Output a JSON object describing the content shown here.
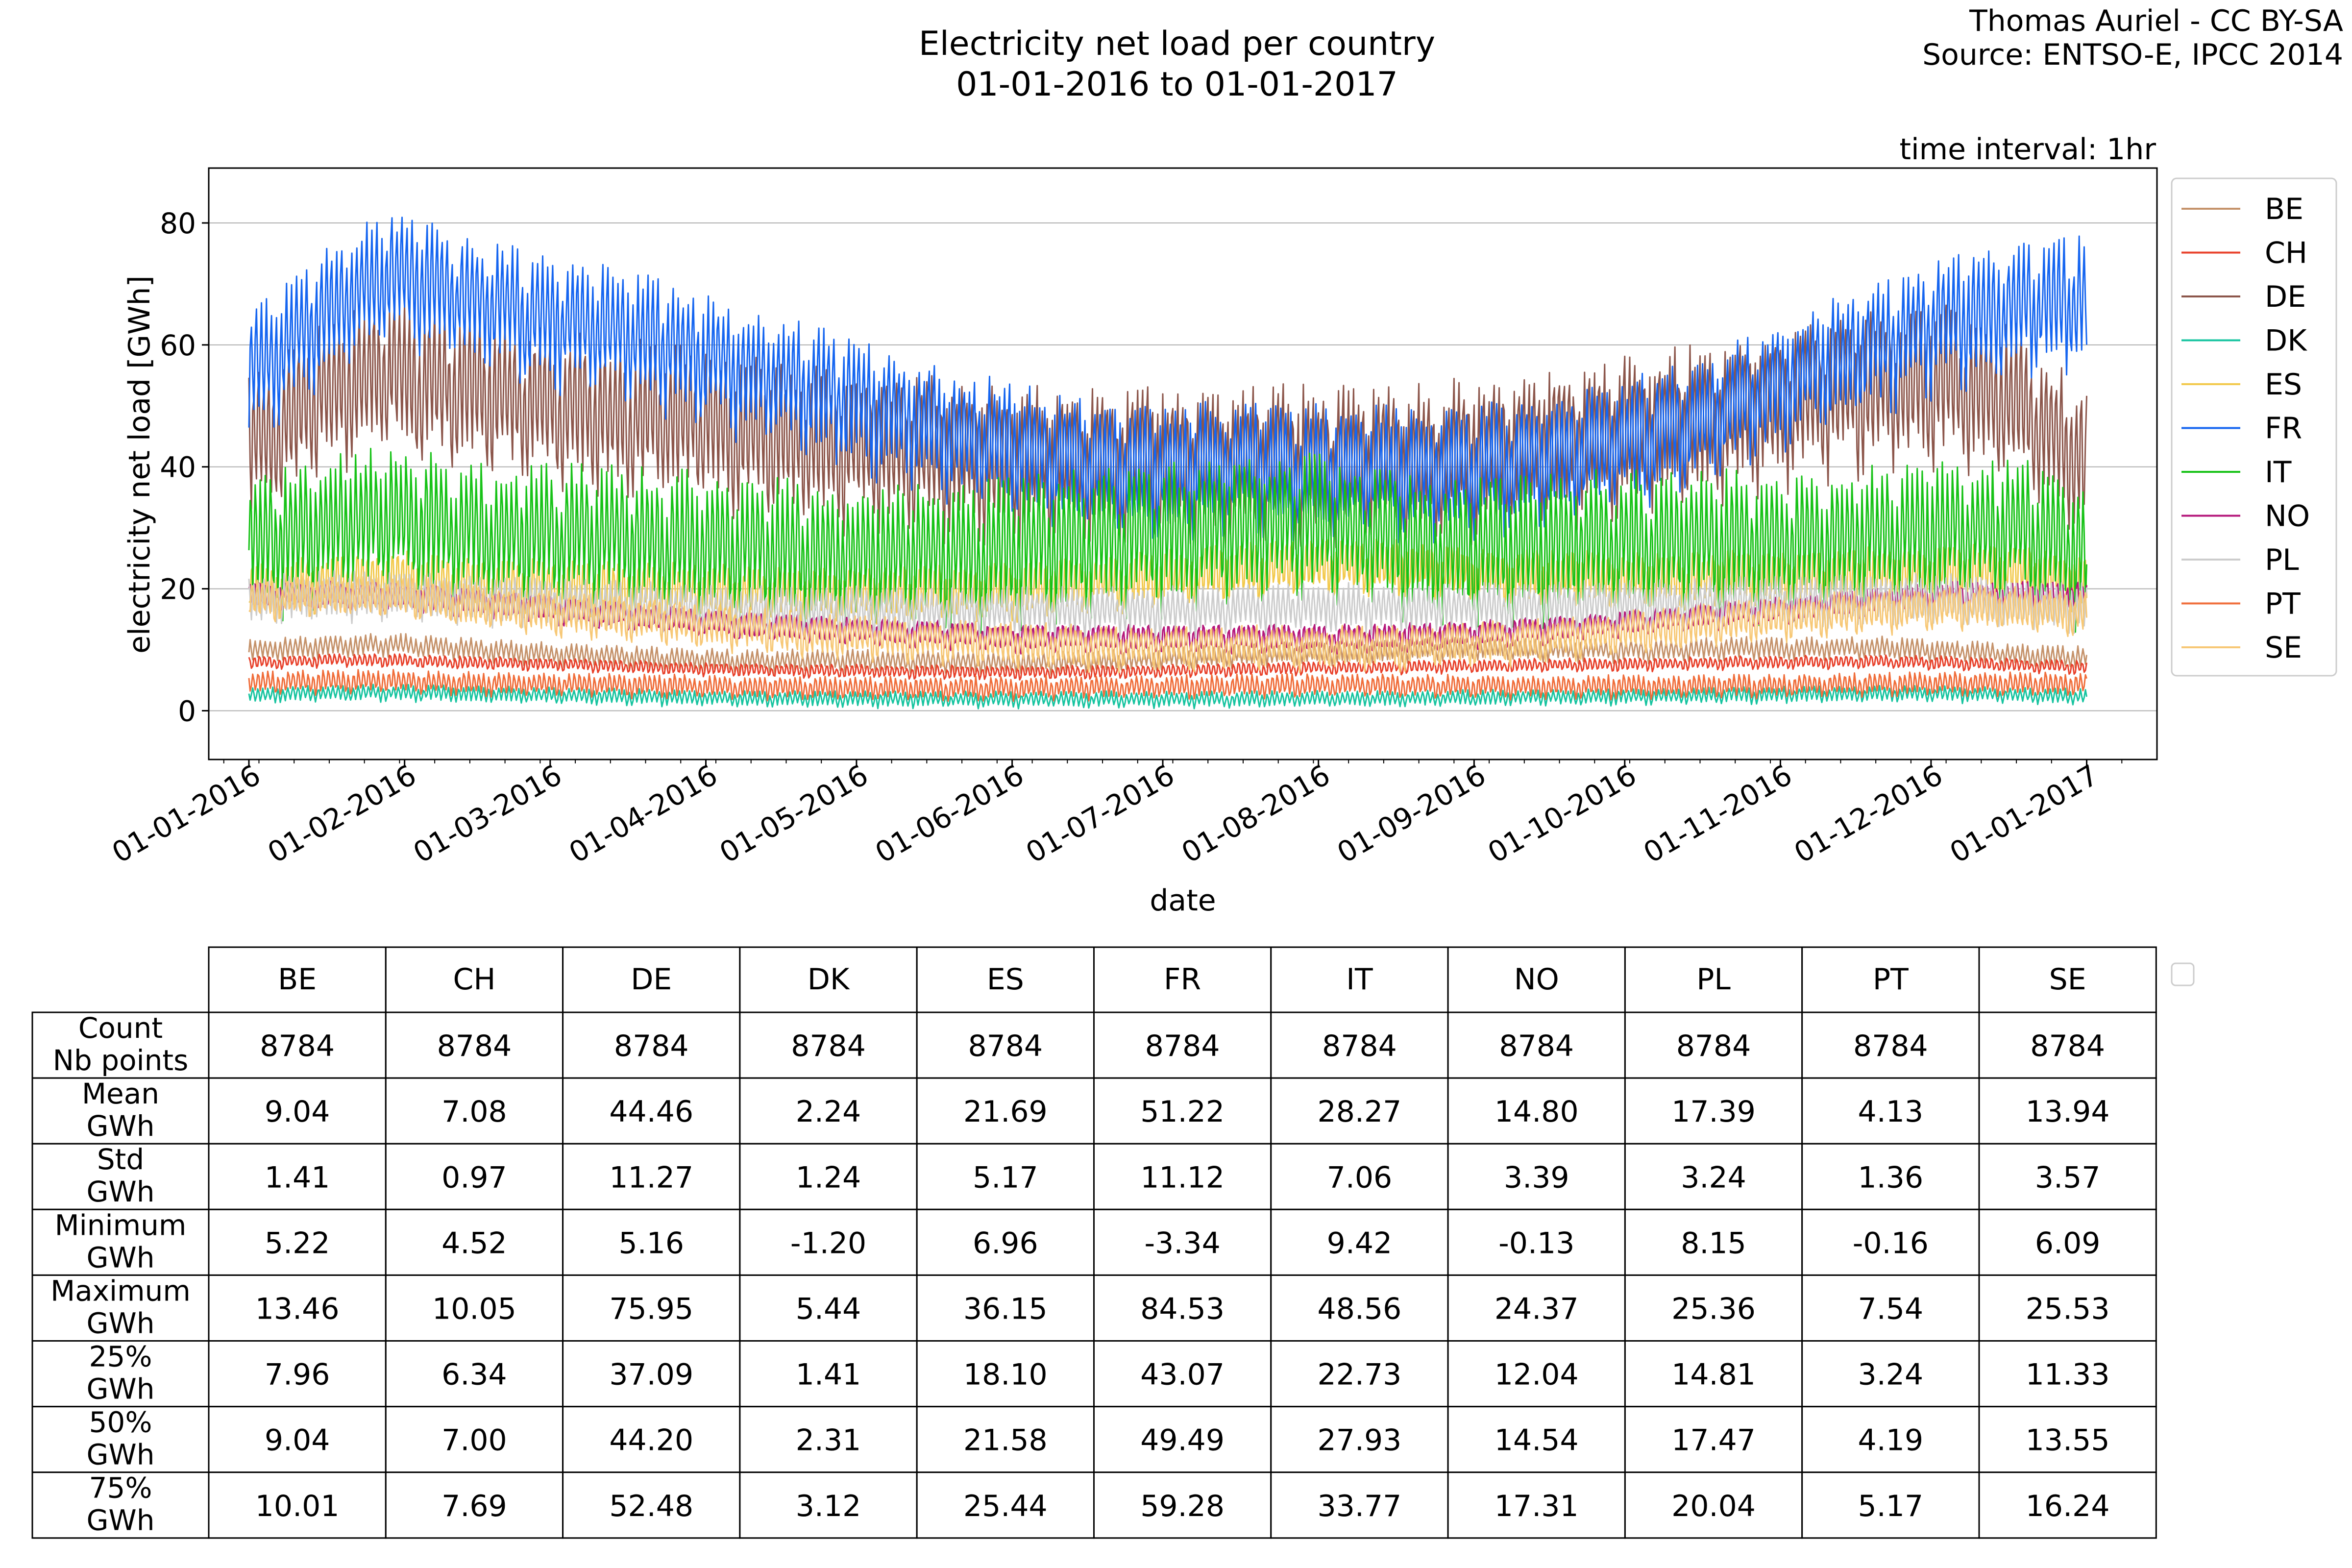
{
  "chart_data": {
    "type": "line",
    "title": "Electricity net load per country",
    "subtitle": "01-01-2016 to 01-01-2017",
    "credit": [
      "Thomas Auriel - CC BY-SA",
      "Source: ENTSO-E, IPCC 2014"
    ],
    "annotation": "time interval: 1hr",
    "xlabel": "date",
    "ylabel": "electricity net load [GWh]",
    "xlim": [
      "2015-12-24",
      "2017-01-15"
    ],
    "ylim": [
      -8,
      89
    ],
    "yticks": [
      0,
      20,
      40,
      60,
      80
    ],
    "xticks": [
      "01-01-2016",
      "01-02-2016",
      "01-03-2016",
      "01-04-2016",
      "01-05-2016",
      "01-06-2016",
      "01-07-2016",
      "01-08-2016",
      "01-09-2016",
      "01-10-2016",
      "01-11-2016",
      "01-12-2016",
      "01-01-2017"
    ],
    "xtick_dates": [
      "2016-01-01",
      "2016-02-01",
      "2016-03-01",
      "2016-04-01",
      "2016-05-01",
      "2016-06-01",
      "2016-07-01",
      "2016-08-01",
      "2016-09-01",
      "2016-10-01",
      "2016-11-01",
      "2016-12-01",
      "2017-01-01"
    ],
    "grid": "horizontal",
    "legend_position": "right",
    "x_start": "2016-01-01",
    "x_end": "2017-01-01",
    "series": [
      {
        "name": "BE",
        "color": "#c5926a",
        "values": [
          9.8,
          10.6,
          10.9,
          10.2,
          9.5,
          9.0,
          8.6,
          8.2,
          8.3,
          8.3,
          8.0,
          7.9,
          8.3,
          8.7,
          9.2,
          9.5,
          9.8,
          10.3,
          10.1,
          10.0,
          9.9,
          10.3,
          10.2,
          10.4,
          9.9,
          9.2,
          8.8
        ],
        "amplitude": 1.4
      },
      {
        "name": "CH",
        "color": "#e8402a",
        "values": [
          7.8,
          8.3,
          8.3,
          7.9,
          7.7,
          7.4,
          7.0,
          6.7,
          6.6,
          6.5,
          6.4,
          6.3,
          6.4,
          6.6,
          6.8,
          7.0,
          7.1,
          7.3,
          7.5,
          7.6,
          7.7,
          7.9,
          8.0,
          8.1,
          7.9,
          7.5,
          7.1
        ],
        "amplitude": 0.9
      },
      {
        "name": "DE",
        "color": "#8c564b",
        "values": [
          43,
          52,
          56,
          53,
          51,
          49,
          48,
          46,
          44,
          43,
          42,
          41,
          41,
          41,
          41,
          41,
          41,
          42,
          43,
          45,
          47,
          49,
          51,
          53,
          54,
          51,
          40
        ],
        "amplitude": 10
      },
      {
        "name": "DK",
        "color": "#17c4a0",
        "values": [
          2.6,
          2.9,
          3.0,
          2.8,
          2.6,
          2.4,
          2.2,
          2.0,
          2.0,
          1.9,
          1.9,
          1.9,
          1.9,
          1.9,
          1.9,
          2.0,
          2.0,
          2.1,
          2.2,
          2.3,
          2.4,
          2.6,
          2.7,
          2.8,
          2.8,
          2.6,
          2.3
        ],
        "amplitude": 1.0
      },
      {
        "name": "ES",
        "color": "#f2c94c",
        "values": [
          20,
          21,
          22,
          21,
          20.5,
          20,
          20,
          19.5,
          19.5,
          19.5,
          19.5,
          20,
          21,
          22,
          23,
          24,
          24,
          23,
          22,
          22,
          21.5,
          22,
          22,
          22.5,
          23,
          23,
          21
        ],
        "amplitude": 4
      },
      {
        "name": "FR",
        "color": "#1565f0",
        "values": [
          55,
          65,
          72,
          68,
          65,
          63,
          60,
          56,
          53,
          49,
          46,
          43,
          41,
          40,
          41,
          40,
          40,
          40,
          41,
          43,
          46,
          50,
          56,
          60,
          64,
          66,
          68
        ],
        "amplitude": 8
      },
      {
        "name": "IT",
        "color": "#17c217",
        "values": [
          27,
          30,
          32,
          30,
          29,
          29,
          28,
          27,
          26,
          26,
          26,
          27,
          28,
          29,
          30,
          31,
          29,
          26,
          27,
          28,
          28,
          28,
          28,
          29,
          30,
          30,
          26
        ],
        "amplitude": 9
      },
      {
        "name": "NO",
        "color": "#b5177b",
        "values": [
          19,
          19,
          19,
          18,
          17,
          16,
          15,
          14,
          13.5,
          13,
          12.5,
          12,
          12,
          12,
          12,
          12,
          12,
          12.5,
          13,
          14,
          15,
          16,
          17,
          18,
          19,
          19,
          19
        ],
        "amplitude": 2
      },
      {
        "name": "PL",
        "color": "#cccccc",
        "values": [
          18,
          19,
          19,
          18.5,
          18,
          17.5,
          17,
          16.5,
          16.5,
          16.5,
          16.5,
          16.5,
          16.5,
          16.5,
          17,
          17,
          17,
          17,
          17,
          17.5,
          17.5,
          18,
          18,
          18.5,
          18.5,
          18,
          17
        ],
        "amplitude": 3
      },
      {
        "name": "PT",
        "color": "#f06d3a",
        "values": [
          4.6,
          4.8,
          4.9,
          4.6,
          4.4,
          4.3,
          4.1,
          3.9,
          3.8,
          3.8,
          3.8,
          3.8,
          3.9,
          4.0,
          4.1,
          4.2,
          4.2,
          4.1,
          4.0,
          4.0,
          4.0,
          4.1,
          4.2,
          4.4,
          4.5,
          4.5,
          4.3
        ],
        "amplitude": 1.5
      },
      {
        "name": "SE",
        "color": "#f7c876",
        "values": [
          18,
          19,
          19,
          17.5,
          16.5,
          15.5,
          14.5,
          13.5,
          12.5,
          12,
          11.5,
          11,
          10.5,
          10.5,
          10.5,
          10.5,
          10.5,
          11,
          11.5,
          12.5,
          13.5,
          14.5,
          15.5,
          16.5,
          17,
          17,
          16
        ],
        "amplitude": 3
      }
    ]
  },
  "stats_table": {
    "columns": [
      "BE",
      "CH",
      "DE",
      "DK",
      "ES",
      "FR",
      "IT",
      "NO",
      "PL",
      "PT",
      "SE"
    ],
    "rows": [
      {
        "label": [
          "Count",
          "Nb points"
        ],
        "values": [
          "8784",
          "8784",
          "8784",
          "8784",
          "8784",
          "8784",
          "8784",
          "8784",
          "8784",
          "8784",
          "8784"
        ]
      },
      {
        "label": [
          "Mean",
          "GWh"
        ],
        "values": [
          "9.04",
          "7.08",
          "44.46",
          "2.24",
          "21.69",
          "51.22",
          "28.27",
          "14.80",
          "17.39",
          "4.13",
          "13.94"
        ]
      },
      {
        "label": [
          "Std",
          "GWh"
        ],
        "values": [
          "1.41",
          "0.97",
          "11.27",
          "1.24",
          "5.17",
          "11.12",
          "7.06",
          "3.39",
          "3.24",
          "1.36",
          "3.57"
        ]
      },
      {
        "label": [
          "Minimum",
          "GWh"
        ],
        "values": [
          "5.22",
          "4.52",
          "5.16",
          "-1.20",
          "6.96",
          "-3.34",
          "9.42",
          "-0.13",
          "8.15",
          "-0.16",
          "6.09"
        ]
      },
      {
        "label": [
          "Maximum",
          "GWh"
        ],
        "values": [
          "13.46",
          "10.05",
          "75.95",
          "5.44",
          "36.15",
          "84.53",
          "48.56",
          "24.37",
          "25.36",
          "7.54",
          "25.53"
        ]
      },
      {
        "label": [
          "25%",
          "GWh"
        ],
        "values": [
          "7.96",
          "6.34",
          "37.09",
          "1.41",
          "18.10",
          "43.07",
          "22.73",
          "12.04",
          "14.81",
          "3.24",
          "11.33"
        ]
      },
      {
        "label": [
          "50%",
          "GWh"
        ],
        "values": [
          "9.04",
          "7.00",
          "44.20",
          "2.31",
          "21.58",
          "49.49",
          "27.93",
          "14.54",
          "17.47",
          "4.19",
          "13.55"
        ]
      },
      {
        "label": [
          "75%",
          "GWh"
        ],
        "values": [
          "10.01",
          "7.69",
          "52.48",
          "3.12",
          "25.44",
          "59.28",
          "33.77",
          "17.31",
          "20.04",
          "5.17",
          "16.24"
        ]
      }
    ]
  }
}
